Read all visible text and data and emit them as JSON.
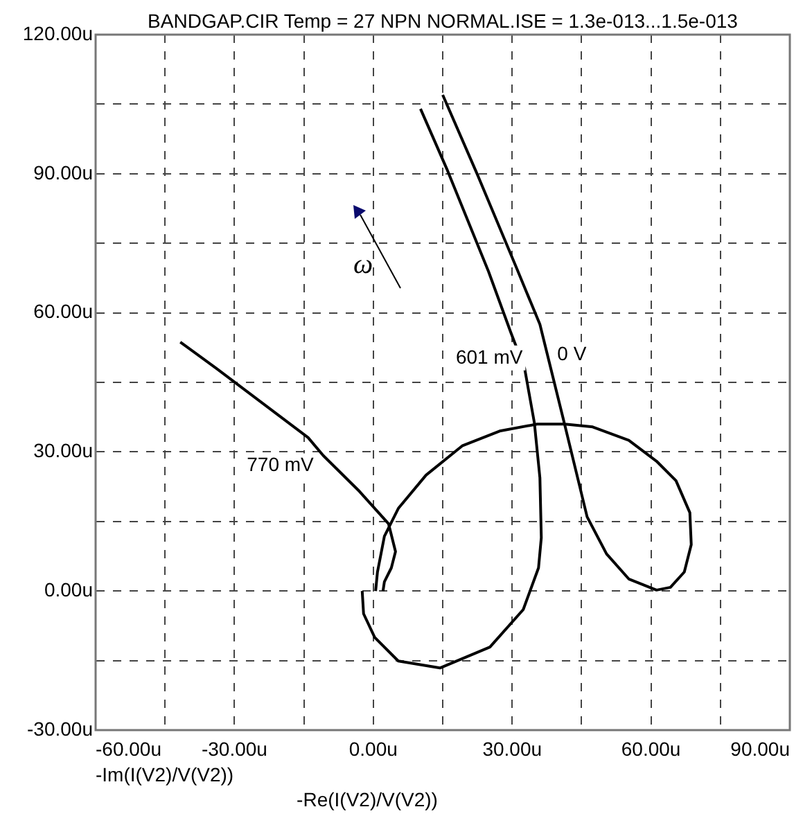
{
  "chart_data": {
    "type": "line",
    "title": "BANDGAP.CIR Temp = 27 NPN NORMAL.ISE = 1.3e-013...1.5e-013",
    "xlabel": "-Re(I(V2)/V(V2))",
    "annotations": [
      "ω",
      "-Im(I(V2)/V(V2))"
    ],
    "xlim": [
      -60,
      90
    ],
    "ylim": [
      -30,
      120
    ],
    "xticks": [
      {
        "value": -60,
        "label": "-60.00u"
      },
      {
        "value": -45,
        "label": null
      },
      {
        "value": -30,
        "label": "-30.00u"
      },
      {
        "value": -15,
        "label": null
      },
      {
        "value": 0,
        "label": "0.00u"
      },
      {
        "value": 15,
        "label": null
      },
      {
        "value": 30,
        "label": "30.00u"
      },
      {
        "value": 45,
        "label": null
      },
      {
        "value": 60,
        "label": "60.00u"
      },
      {
        "value": 75,
        "label": null
      },
      {
        "value": 90,
        "label": "90.00u"
      }
    ],
    "yticks": [
      {
        "value": -30,
        "label": "-30.00u"
      },
      {
        "value": -15,
        "label": null
      },
      {
        "value": 0,
        "label": "0.00u"
      },
      {
        "value": 15,
        "label": null
      },
      {
        "value": 30,
        "label": "30.00u"
      },
      {
        "value": 45,
        "label": null
      },
      {
        "value": 60,
        "label": "60.00u"
      },
      {
        "value": 75,
        "label": null
      },
      {
        "value": 90,
        "label": "90.00u"
      },
      {
        "value": 105,
        "label": null
      },
      {
        "value": 120,
        "label": "120.00u"
      }
    ],
    "grid": true,
    "legend": false,
    "marker": "none",
    "line_style": "solid",
    "series": [
      {
        "name": "0 V",
        "color": "#000000",
        "x": [
          15.0,
          22.5,
          30.9,
          36.0,
          41.4,
          46.2,
          50.4,
          55.2,
          61.2,
          64.2,
          67.2,
          68.7,
          68.4,
          65.4,
          61.2,
          55.2,
          47.4,
          41.4,
          35.4,
          27.3,
          19.2,
          11.4,
          5.4,
          2.4,
          0.9,
          0.5
        ],
        "values": [
          107.0,
          89.8,
          69.8,
          57.5,
          35.7,
          16.0,
          8.0,
          2.6,
          0.2,
          0.8,
          4.1,
          10.0,
          16.9,
          23.8,
          28.0,
          32.5,
          35.4,
          36.0,
          36.0,
          34.5,
          31.3,
          25.0,
          17.8,
          11.8,
          4.1,
          0
        ]
      },
      {
        "name": "601 mV",
        "color": "#000000",
        "x": [
          10.2,
          15.9,
          24.9,
          29.7,
          32.7,
          34.8,
          36.0,
          36.3,
          35.7,
          32.4,
          25.2,
          14.4,
          5.4,
          0.3,
          -2.1,
          -2.4
        ],
        "values": [
          104.0,
          91.0,
          68.9,
          55.8,
          48.0,
          36.3,
          24.4,
          11.5,
          5.0,
          -4.0,
          -12.1,
          -16.6,
          -15.1,
          -10.0,
          -4.9,
          0
        ]
      },
      {
        "name": "770 mV",
        "color": "#000000",
        "x": [
          -41.7,
          -33.9,
          -14.1,
          -10.8,
          -3.0,
          3.3,
          4.8,
          3.9,
          2.4,
          2.1
        ],
        "values": [
          53.7,
          48.0,
          33.1,
          29.2,
          21.5,
          14.5,
          8.5,
          5.0,
          2.0,
          0
        ]
      }
    ]
  }
}
